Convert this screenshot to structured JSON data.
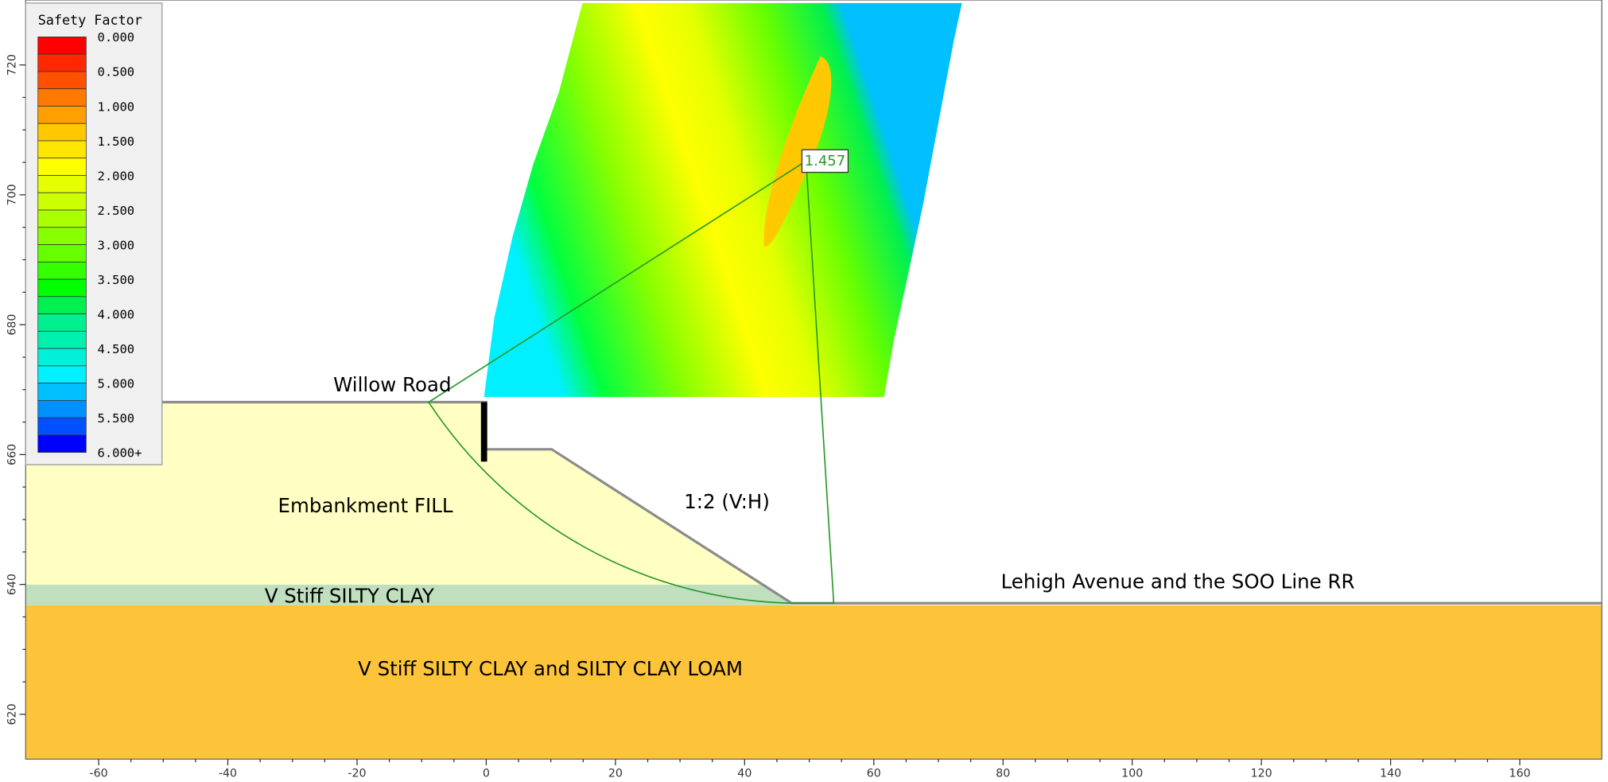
{
  "chart_data": {
    "type": "slope",
    "xlim": [
      -71.3,
      172.7
    ],
    "ylim": [
      613.1,
      730
    ],
    "xticks": [
      -60,
      -40,
      -20,
      0,
      20,
      40,
      60,
      80,
      100,
      120,
      140,
      160
    ],
    "yticks": [
      620,
      640,
      660,
      680,
      700,
      720
    ],
    "legend": {
      "title": "Safety Factor",
      "labels": [
        "0.000",
        "0.500",
        "1.000",
        "1.500",
        "2.000",
        "2.500",
        "3.000",
        "3.500",
        "4.000",
        "4.500",
        "5.000",
        "5.500",
        "6.000+"
      ],
      "colors": [
        "#ff0000",
        "#ff2800",
        "#ff5000",
        "#ff7800",
        "#ffa000",
        "#ffc800",
        "#ffe600",
        "#ffff00",
        "#e6ff00",
        "#ccff00",
        "#aaff00",
        "#88ff00",
        "#66ff00",
        "#33ff00",
        "#00ff00",
        "#00f050",
        "#00f090",
        "#00f0b0",
        "#00f0d8",
        "#00f0ff",
        "#00c0ff",
        "#0090ff",
        "#0050ff",
        "#0000ff"
      ]
    },
    "labels": {
      "road": "Willow Road",
      "fill": "Embankment FILL",
      "slope": "1:2 (V:H)",
      "clay": "V Stiff SILTY CLAY",
      "street": "Lehigh Avenue and the SOO Line RR",
      "loam": "V Stiff SILTY CLAY and SILTY CLAY LOAM"
    },
    "min_factor": "1.457"
  }
}
